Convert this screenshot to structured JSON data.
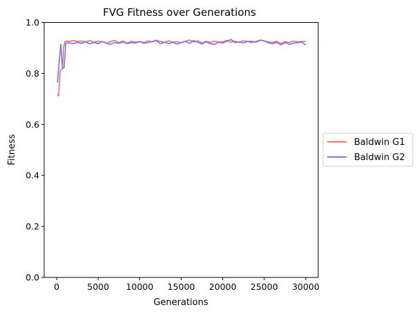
{
  "chart_data": {
    "type": "line",
    "title": "FVG Fitness over Generations",
    "xlabel": "Generations",
    "ylabel": "Fitness",
    "xlim": [
      -1500,
      31500
    ],
    "ylim": [
      0.0,
      1.0
    ],
    "xticks": [
      0,
      5000,
      10000,
      15000,
      20000,
      25000,
      30000
    ],
    "xtick_labels": [
      "0",
      "5000",
      "10000",
      "15000",
      "20000",
      "25000",
      "30000"
    ],
    "yticks": [
      0.0,
      0.2,
      0.4,
      0.6,
      0.8,
      1.0
    ],
    "ytick_labels": [
      "0.0",
      "0.2",
      "0.4",
      "0.6",
      "0.8",
      "1.0"
    ],
    "grid": false,
    "legend_position": "outside-right",
    "series": [
      {
        "name": "Baldwin G1",
        "color": "#ff6a64",
        "x": [
          100,
          250,
          400,
          550,
          700,
          850,
          1000,
          1250,
          1500,
          2000,
          2500,
          3000,
          3500,
          4000,
          4500,
          5000,
          5500,
          6000,
          6500,
          7000,
          7500,
          8000,
          8500,
          9000,
          9500,
          10000,
          10500,
          11000,
          11500,
          12000,
          12500,
          13000,
          13500,
          14000,
          14500,
          15000,
          15500,
          16000,
          16500,
          17000,
          17500,
          18000,
          18500,
          19000,
          19500,
          20000,
          20500,
          21000,
          21500,
          22000,
          22500,
          23000,
          23500,
          24000,
          24500,
          25000,
          25500,
          26000,
          26500,
          27000,
          27500,
          28000,
          28500,
          29000,
          29500,
          30000
        ],
        "y": [
          0.718,
          0.712,
          0.805,
          0.815,
          0.818,
          0.905,
          0.924,
          0.927,
          0.925,
          0.929,
          0.925,
          0.927,
          0.924,
          0.929,
          0.922,
          0.927,
          0.924,
          0.919,
          0.925,
          0.929,
          0.921,
          0.927,
          0.918,
          0.926,
          0.923,
          0.925,
          0.921,
          0.928,
          0.924,
          0.929,
          0.926,
          0.922,
          0.928,
          0.923,
          0.925,
          0.919,
          0.926,
          0.931,
          0.924,
          0.928,
          0.919,
          0.926,
          0.921,
          0.927,
          0.923,
          0.924,
          0.929,
          0.922,
          0.926,
          0.921,
          0.928,
          0.925,
          0.927,
          0.922,
          0.93,
          0.927,
          0.924,
          0.921,
          0.926,
          0.916,
          0.925,
          0.921,
          0.927,
          0.924,
          0.925,
          0.926
        ]
      },
      {
        "name": "Baldwin G2",
        "color": "#7070ff",
        "x": [
          100,
          300,
          500,
          700,
          900,
          1100,
          1350,
          1600,
          2000,
          2500,
          3000,
          3500,
          4000,
          4500,
          5000,
          5500,
          6000,
          6500,
          7000,
          7500,
          8000,
          8500,
          9000,
          9500,
          10000,
          10500,
          11000,
          11500,
          12000,
          12500,
          13000,
          13500,
          14000,
          14500,
          15000,
          15500,
          16000,
          16500,
          17000,
          17500,
          18000,
          18500,
          19000,
          19500,
          20000,
          20500,
          21000,
          21500,
          22000,
          22500,
          23000,
          23500,
          24000,
          24500,
          25000,
          25500,
          26000,
          26500,
          27000,
          27500,
          28000,
          28500,
          29000,
          29500,
          30000
        ],
        "y": [
          0.765,
          0.845,
          0.915,
          0.821,
          0.822,
          0.918,
          0.921,
          0.919,
          0.917,
          0.922,
          0.918,
          0.924,
          0.916,
          0.922,
          0.917,
          0.925,
          0.919,
          0.914,
          0.921,
          0.918,
          0.924,
          0.917,
          0.921,
          0.919,
          0.925,
          0.918,
          0.921,
          0.925,
          0.93,
          0.916,
          0.923,
          0.917,
          0.922,
          0.915,
          0.921,
          0.926,
          0.918,
          0.929,
          0.922,
          0.915,
          0.924,
          0.917,
          0.914,
          0.923,
          0.919,
          0.927,
          0.933,
          0.921,
          0.924,
          0.919,
          0.926,
          0.921,
          0.925,
          0.931,
          0.928,
          0.92,
          0.916,
          0.922,
          0.912,
          0.921,
          0.914,
          0.918,
          0.921,
          0.923,
          0.911
        ]
      }
    ]
  }
}
